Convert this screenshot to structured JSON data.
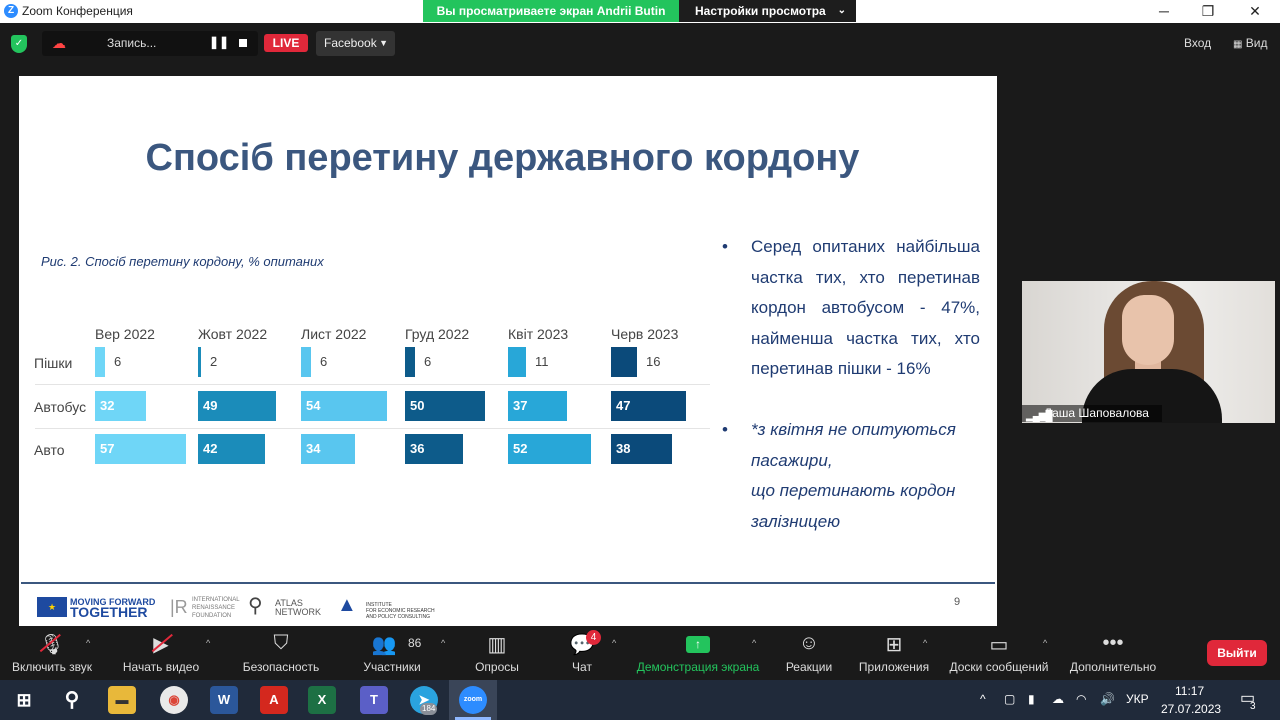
{
  "window": {
    "title": "Zoom Конференция",
    "share_banner": "Вы просматриваете экран Andrii Butin",
    "view_settings": "Настройки просмотра"
  },
  "topbar": {
    "record_label": "Запись...",
    "live_label": "LIVE",
    "stream_target": "Facebook",
    "enter_label": "Вход",
    "view_label": "Вид"
  },
  "slide": {
    "title": "Спосіб перетину державного кордону",
    "caption": "Рис. 2. Спосіб перетину кордону, % опитаних",
    "page_number": "9",
    "bullets": [
      "Серед опитаних найбільша частка тих, хто перетинав кордон автобусом - 47%, найменша частка тих, хто перетинав пішки - 16%",
      "*з квітня не опитуються пасажири, що перетинають кордон залізницею"
    ],
    "bullet2_parts": {
      "a": "*з квітня ",
      "b": "не опитуються пасажири,",
      "c": "що  перетинають кордон залізницею"
    },
    "logos": {
      "mft_line1": "MOVING FORWARD",
      "mft_line2": "TOGETHER",
      "irf_line1": "INTERNATIONAL",
      "irf_line2": "RENAISSANCE",
      "irf_line3": "FOUNDATION",
      "atlas_line1": "ATLAS",
      "atlas_line2": "NETWORK",
      "ier_line1": "INSTITUTE",
      "ier_line2": "FOR ECONOMIC RESEARCH",
      "ier_line3": "AND POLICY CONSULTING"
    }
  },
  "chart_data": {
    "type": "table",
    "title": "Рис. 2. Спосіб перетину кордону, % опитаних",
    "categories": [
      "Вер 2022",
      "Жовт 2022",
      "Лист 2022",
      "Груд 2022",
      "Квіт 2023",
      "Черв 2023"
    ],
    "series": [
      {
        "name": "Пішки",
        "values": [
          6,
          2,
          6,
          6,
          11,
          16
        ]
      },
      {
        "name": "Автобус",
        "values": [
          32,
          49,
          54,
          50,
          37,
          47
        ]
      },
      {
        "name": "Авто",
        "values": [
          57,
          42,
          34,
          36,
          52,
          38
        ]
      }
    ],
    "colors": [
      "#6fd6f7",
      "#1b8cba",
      "#59c6ef",
      "#0d5b8a",
      "#28a7d8",
      "#0b4a7a"
    ]
  },
  "participant": {
    "name": "Даша Шаповалова"
  },
  "bottombar": {
    "items": [
      {
        "label": "Включить звук"
      },
      {
        "label": "Начать видео"
      },
      {
        "label": "Безопасность"
      },
      {
        "label": "Участники",
        "count": "86"
      },
      {
        "label": "Опросы"
      },
      {
        "label": "Чат",
        "badge": "4"
      },
      {
        "label": "Демонстрация экрана"
      },
      {
        "label": "Реакции"
      },
      {
        "label": "Приложения"
      },
      {
        "label": "Доски сообщений"
      },
      {
        "label": "Дополнительно"
      }
    ],
    "leave_label": "Выйти",
    "accent_green": "#23c45d"
  },
  "taskbar": {
    "telegram_badge": "184",
    "lang": "УКР",
    "time": "11:17",
    "date": "27.07.2023",
    "notif_count": "3"
  }
}
